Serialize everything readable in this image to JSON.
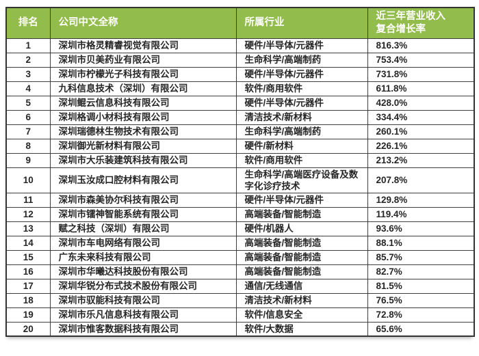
{
  "accent_color": "#92BC4B",
  "border_color": "#3d3d3d",
  "text_color": "#262626",
  "header": {
    "rank": "排名",
    "company": "公司中文全称",
    "industry": "所属行业",
    "growth_line1": "近三年营业收入",
    "growth_line2": "复合增长率"
  },
  "chart_data": {
    "type": "table",
    "columns": [
      "排名",
      "公司中文全称",
      "所属行业",
      "近三年营业收入复合增长率"
    ],
    "rows": [
      {
        "rank": "1",
        "company": "深圳市格灵精睿视觉有限公司",
        "industry": "硬件/半导体/元器件",
        "growth": "816.3%"
      },
      {
        "rank": "2",
        "company": "深圳市贝美药业有限公司",
        "industry": "生命科学/高端制药",
        "growth": "753.4%"
      },
      {
        "rank": "3",
        "company": "深圳市柠檬光子科技有限公司",
        "industry": "硬件/半导体/元器件",
        "growth": "731.8%"
      },
      {
        "rank": "4",
        "company": "九科信息技术（深圳）有限公司",
        "industry": "软件/商用软件",
        "growth": "611.8%"
      },
      {
        "rank": "5",
        "company": "深圳鲲云信息科技有限公司",
        "industry": "硬件/半导体/元器件",
        "growth": "428.0%"
      },
      {
        "rank": "6",
        "company": "深圳格调小材科技有限公司",
        "industry": "清洁技术/新材料",
        "growth": "334.4%"
      },
      {
        "rank": "7",
        "company": "深圳瑞德林生物技术有限公司",
        "industry": "生命科学/高端制药",
        "growth": "260.1%"
      },
      {
        "rank": "8",
        "company": "深圳御光新材料有限公司",
        "industry": "硬件/新材料",
        "growth": "226.1%"
      },
      {
        "rank": "9",
        "company": "深圳市大乐装建筑科技有限公司",
        "industry": "软件/商用软件",
        "growth": "213.2%"
      },
      {
        "rank": "10",
        "company": "深圳玉汝成口腔材料有限公司",
        "industry": "生命科学/高端医疗设备及数字化诊疗技术",
        "growth": "207.8%"
      },
      {
        "rank": "11",
        "company": "深圳市森美协尔科技有限公司",
        "industry": "硬件/半导体/元器件",
        "growth": "129.8%"
      },
      {
        "rank": "12",
        "company": "深圳市镭神智能系统有限公司",
        "industry": "高端装备/智能制造",
        "growth": "119.4%"
      },
      {
        "rank": "13",
        "company": "赋之科技（深圳）有限公司",
        "industry": "硬件/机器人",
        "growth": "93.6%"
      },
      {
        "rank": "14",
        "company": "深圳市车电网络有限公司",
        "industry": "高端装备/智能制造",
        "growth": "88.1%"
      },
      {
        "rank": "15",
        "company": "广东未来科技有限公司",
        "industry": "高端装备/智能制造",
        "growth": "85.7%"
      },
      {
        "rank": "16",
        "company": "深圳市华曦达科技股份有限公司",
        "industry": "高端装备/智能制造",
        "growth": "82.7%"
      },
      {
        "rank": "17",
        "company": "深圳华锐分布式技术股份有限公司",
        "industry": "通信/无线通信",
        "growth": "81.5%"
      },
      {
        "rank": "18",
        "company": "深圳市驭能科技有限公司",
        "industry": "清洁技术/新材料",
        "growth": "76.5%"
      },
      {
        "rank": "19",
        "company": "深圳市乐凡信息科技有限公司",
        "industry": "软件/信息安全",
        "growth": "72.8%"
      },
      {
        "rank": "20",
        "company": "深圳市惟客数据科技有限公司",
        "industry": "软件/大数据",
        "growth": "65.6%"
      }
    ]
  }
}
